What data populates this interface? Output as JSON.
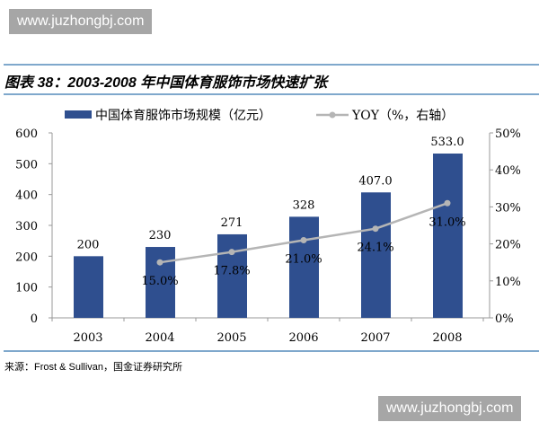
{
  "watermark": "www.juzhongbj.com",
  "title": "图表 38：2003-2008 年中国体育服饰市场快速扩张",
  "source": "来源：Frost & Sullivan，国金证券研究所",
  "colors": {
    "bar": "#2f4f8f",
    "line": "#b5b5b5",
    "rule": "#7fa8cc"
  },
  "chart_data": {
    "type": "bar+line",
    "categories": [
      "2003",
      "2004",
      "2005",
      "2006",
      "2007",
      "2008"
    ],
    "series": [
      {
        "name": "中国体育服饰市场规模（亿元）",
        "type": "bar",
        "axis": "left",
        "values": [
          200,
          230,
          271,
          328,
          407,
          533
        ],
        "labels": [
          "200",
          "230",
          "271",
          "328",
          "407.0",
          "533.0"
        ]
      },
      {
        "name": "YOY（%，右轴）",
        "type": "line",
        "axis": "right",
        "values": [
          null,
          15.0,
          17.8,
          21.0,
          24.1,
          31.0
        ],
        "labels": [
          "",
          "15.0%",
          "17.8%",
          "21.0%",
          "24.1%",
          "31.0%"
        ]
      }
    ],
    "ylim_left": [
      0,
      600
    ],
    "yticks_left": [
      "0",
      "100",
      "200",
      "300",
      "400",
      "500",
      "600"
    ],
    "ylim_right": [
      0,
      50
    ],
    "yticks_right": [
      "0%",
      "10%",
      "20%",
      "30%",
      "40%",
      "50%"
    ],
    "legend": "top",
    "grid": false
  }
}
